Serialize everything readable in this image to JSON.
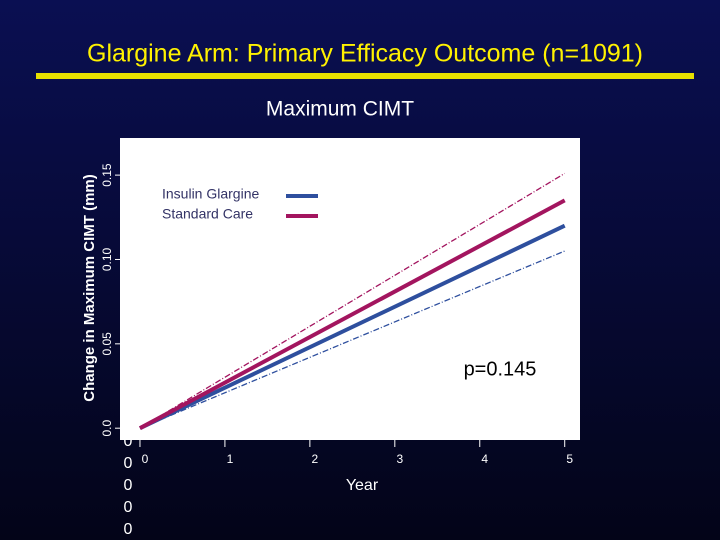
{
  "chart_data": {
    "type": "line",
    "title": "Glargine Arm: Primary Efficacy Outcome (n=1091)",
    "subtitle": "Maximum CIMT",
    "y_label": "Change in Maximum CIMT (mm)",
    "x_label": "Year",
    "annotation": "p=0.145",
    "x": [
      0,
      5
    ],
    "series": [
      {
        "name": "Insulin Glargine",
        "color": "#2e4f9e",
        "values": [
          0,
          0.12
        ],
        "lower": [
          0,
          0.105
        ]
      },
      {
        "name": "Standard Care",
        "color": "#a3155f",
        "values": [
          0,
          0.135
        ],
        "upper": [
          0,
          0.151
        ]
      }
    ],
    "xlim": [
      -0.235,
      5.18
    ],
    "xticks": [
      0,
      1,
      2,
      3,
      4,
      5
    ],
    "ylim": [
      -0.007,
      0.172
    ],
    "yticks": [
      {
        "value": 0,
        "label": "0.0"
      },
      0.05,
      {
        "value": 0.1,
        "label": "0.10"
      },
      0.15
    ],
    "stray_labels": [
      "0",
      "0",
      "0",
      "0",
      "0"
    ],
    "legend": "upper-left"
  }
}
